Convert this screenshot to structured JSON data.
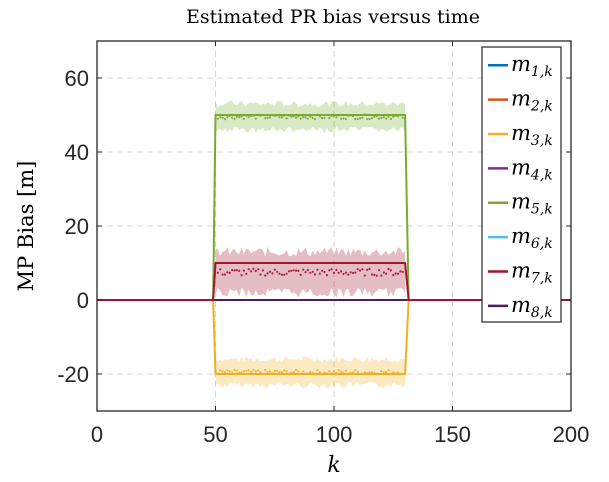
{
  "chart_data": {
    "type": "line",
    "title": "Estimated PR bias versus time",
    "xlabel": "k",
    "ylabel": "MP Bias [m]",
    "xlim": [
      0,
      200
    ],
    "ylim": [
      -30,
      70
    ],
    "xticks": [
      0,
      50,
      100,
      150,
      200
    ],
    "yticks": [
      -20,
      0,
      20,
      40,
      60
    ],
    "xtick_labels": [
      "0",
      "50",
      "100",
      "150",
      "200"
    ],
    "ytick_labels": [
      "-20",
      "0",
      "20",
      "40",
      "60"
    ],
    "grid": true,
    "legend_position": "top-right",
    "bias_window": {
      "start_k": 50,
      "end_k": 130
    },
    "series": [
      {
        "name": "m_{1,k}",
        "label_base": "m",
        "label_sub": "1,k",
        "color": "#0072BD",
        "true_bias": 0,
        "estimate_mean": 0,
        "band_halfwidth": 0.4
      },
      {
        "name": "m_{2,k}",
        "label_base": "m",
        "label_sub": "2,k",
        "color": "#D95319",
        "true_bias": 0,
        "estimate_mean": 0,
        "band_halfwidth": 0.4
      },
      {
        "name": "m_{3,k}",
        "label_base": "m",
        "label_sub": "3,k",
        "color": "#EDB120",
        "true_bias": -20,
        "estimate_mean": -19.5,
        "band_halfwidth": 3.5
      },
      {
        "name": "m_{4,k}",
        "label_base": "m",
        "label_sub": "4,k",
        "color": "#7E2F8E",
        "true_bias": 0,
        "estimate_mean": 0,
        "band_halfwidth": 0.4
      },
      {
        "name": "m_{5,k}",
        "label_base": "m",
        "label_sub": "5,k",
        "color": "#77AC30",
        "true_bias": 50,
        "estimate_mean": 49.5,
        "band_halfwidth": 3.5
      },
      {
        "name": "m_{6,k}",
        "label_base": "m",
        "label_sub": "6,k",
        "color": "#4DBEEE",
        "true_bias": 0,
        "estimate_mean": 0,
        "band_halfwidth": 0.4
      },
      {
        "name": "m_{7,k}",
        "label_base": "m",
        "label_sub": "7,k",
        "color": "#A2142F",
        "true_bias": 10,
        "estimate_mean": 7.5,
        "band_halfwidth": 5.5
      },
      {
        "name": "m_{8,k}",
        "label_base": "m",
        "label_sub": "8,k",
        "color": "#4B1E5E",
        "true_bias": 0,
        "estimate_mean": -0.2,
        "band_halfwidth": 0.4
      }
    ]
  }
}
